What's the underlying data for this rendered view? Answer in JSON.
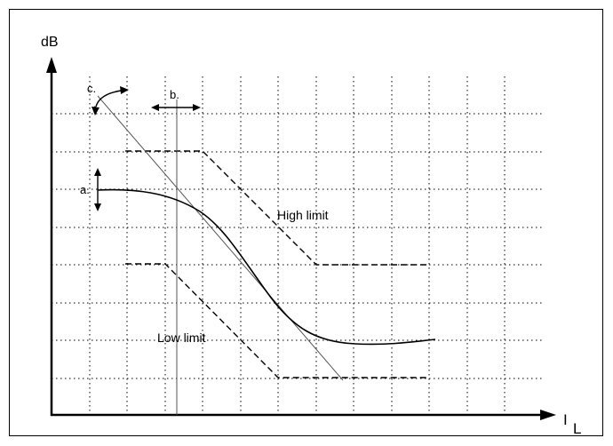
{
  "diagram": {
    "y_axis_label": "dB",
    "x_axis_label_main": "I",
    "x_axis_label_sub": "L",
    "annotations": {
      "a": "a.",
      "b": "b.",
      "c": "c.",
      "high_limit": "High limit",
      "low_limit": "Low limit"
    },
    "colors": {
      "line": "#000000",
      "grid": "#000000",
      "slope_line": "#555555",
      "background": "#ffffff"
    }
  }
}
